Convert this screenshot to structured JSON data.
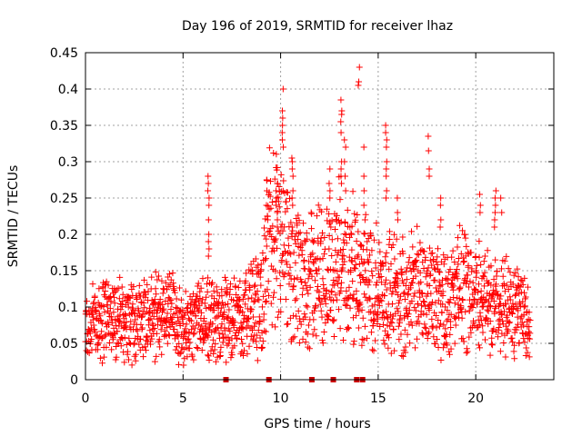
{
  "chart_data": {
    "type": "scatter",
    "title": "Day 196 of 2019, SRMTID for receiver lhaz",
    "xlabel": "GPS time / hours",
    "ylabel": "SRMTID / TECUs",
    "xlim": [
      0,
      24
    ],
    "ylim": [
      0,
      0.45
    ],
    "x_ticks": [
      0,
      5,
      10,
      15,
      20
    ],
    "x_tick_labels": [
      "0",
      "5",
      "10",
      "15",
      "20"
    ],
    "y_ticks": [
      0,
      0.05,
      0.1,
      0.15,
      0.2,
      0.25,
      0.3,
      0.35,
      0.4,
      0.45
    ],
    "y_tick_labels": [
      "0",
      "0.05",
      "0.1",
      "0.15",
      "0.2",
      "0.25",
      "0.3",
      "0.35",
      "0.4",
      "0.45"
    ],
    "grid": true,
    "marker": "+",
    "series": [
      {
        "name": "SRMTID",
        "color": "#ff0000",
        "baseline": [
          [
            0.0,
            0.07
          ],
          [
            0.5,
            0.08
          ],
          [
            1.0,
            0.09
          ],
          [
            1.5,
            0.085
          ],
          [
            2.0,
            0.08
          ],
          [
            2.5,
            0.08
          ],
          [
            3.0,
            0.09
          ],
          [
            3.5,
            0.085
          ],
          [
            4.0,
            0.09
          ],
          [
            4.5,
            0.09
          ],
          [
            5.0,
            0.07
          ],
          [
            5.5,
            0.075
          ],
          [
            6.0,
            0.09
          ],
          [
            6.5,
            0.08
          ],
          [
            7.0,
            0.085
          ],
          [
            7.5,
            0.08
          ],
          [
            8.0,
            0.09
          ],
          [
            8.5,
            0.095
          ],
          [
            9.0,
            0.11
          ],
          [
            9.5,
            0.2
          ],
          [
            10.0,
            0.18
          ],
          [
            10.5,
            0.15
          ],
          [
            11.0,
            0.13
          ],
          [
            11.5,
            0.14
          ],
          [
            12.0,
            0.15
          ],
          [
            12.5,
            0.15
          ],
          [
            13.0,
            0.16
          ],
          [
            13.5,
            0.16
          ],
          [
            14.0,
            0.14
          ],
          [
            14.5,
            0.13
          ],
          [
            15.0,
            0.13
          ],
          [
            15.5,
            0.12
          ],
          [
            16.0,
            0.12
          ],
          [
            16.5,
            0.12
          ],
          [
            17.0,
            0.12
          ],
          [
            17.5,
            0.12
          ],
          [
            18.0,
            0.12
          ],
          [
            18.5,
            0.11
          ],
          [
            19.0,
            0.12
          ],
          [
            19.5,
            0.13
          ],
          [
            20.0,
            0.12
          ],
          [
            20.5,
            0.11
          ],
          [
            21.0,
            0.1
          ],
          [
            21.5,
            0.1
          ],
          [
            22.0,
            0.1
          ],
          [
            22.5,
            0.09
          ],
          [
            22.8,
            0.085
          ]
        ],
        "spikes": [
          {
            "x": 6.3,
            "values": [
              0.28,
              0.27,
              0.26,
              0.25,
              0.24,
              0.22,
              0.2,
              0.19,
              0.18,
              0.17
            ]
          },
          {
            "x": 9.3,
            "values": [
              0.275,
              0.26,
              0.24,
              0.22
            ]
          },
          {
            "x": 9.8,
            "values": [
              0.27,
              0.26,
              0.25,
              0.24,
              0.23,
              0.22,
              0.21
            ]
          },
          {
            "x": 10.1,
            "values": [
              0.4,
              0.37,
              0.36,
              0.35,
              0.34,
              0.33,
              0.32
            ]
          },
          {
            "x": 10.6,
            "values": [
              0.305,
              0.3,
              0.29,
              0.28,
              0.26,
              0.25,
              0.24
            ]
          },
          {
            "x": 12.5,
            "values": [
              0.29,
              0.27,
              0.26,
              0.25
            ]
          },
          {
            "x": 13.1,
            "values": [
              0.385,
              0.37,
              0.365,
              0.355,
              0.34,
              0.3,
              0.29,
              0.28,
              0.27
            ]
          },
          {
            "x": 13.3,
            "values": [
              0.33,
              0.32,
              0.3,
              0.28,
              0.26
            ]
          },
          {
            "x": 14.0,
            "values": [
              0.43,
              0.41,
              0.405
            ]
          },
          {
            "x": 14.3,
            "values": [
              0.32,
              0.28,
              0.26,
              0.24,
              0.22
            ]
          },
          {
            "x": 15.4,
            "values": [
              0.35,
              0.34,
              0.33,
              0.32,
              0.3,
              0.29,
              0.28,
              0.26,
              0.25
            ]
          },
          {
            "x": 16.0,
            "values": [
              0.25,
              0.23,
              0.22
            ]
          },
          {
            "x": 17.6,
            "values": [
              0.335,
              0.315,
              0.29,
              0.28
            ]
          },
          {
            "x": 18.2,
            "values": [
              0.25,
              0.24,
              0.22,
              0.21
            ]
          },
          {
            "x": 20.2,
            "values": [
              0.255,
              0.24,
              0.23
            ]
          },
          {
            "x": 21.0,
            "values": [
              0.26,
              0.25,
              0.24,
              0.23,
              0.22,
              0.21
            ]
          },
          {
            "x": 21.3,
            "values": [
              0.25,
              0.23
            ]
          }
        ],
        "zero_points": [
          7.2,
          9.4,
          11.6,
          12.7,
          13.9,
          14.2
        ]
      }
    ]
  }
}
